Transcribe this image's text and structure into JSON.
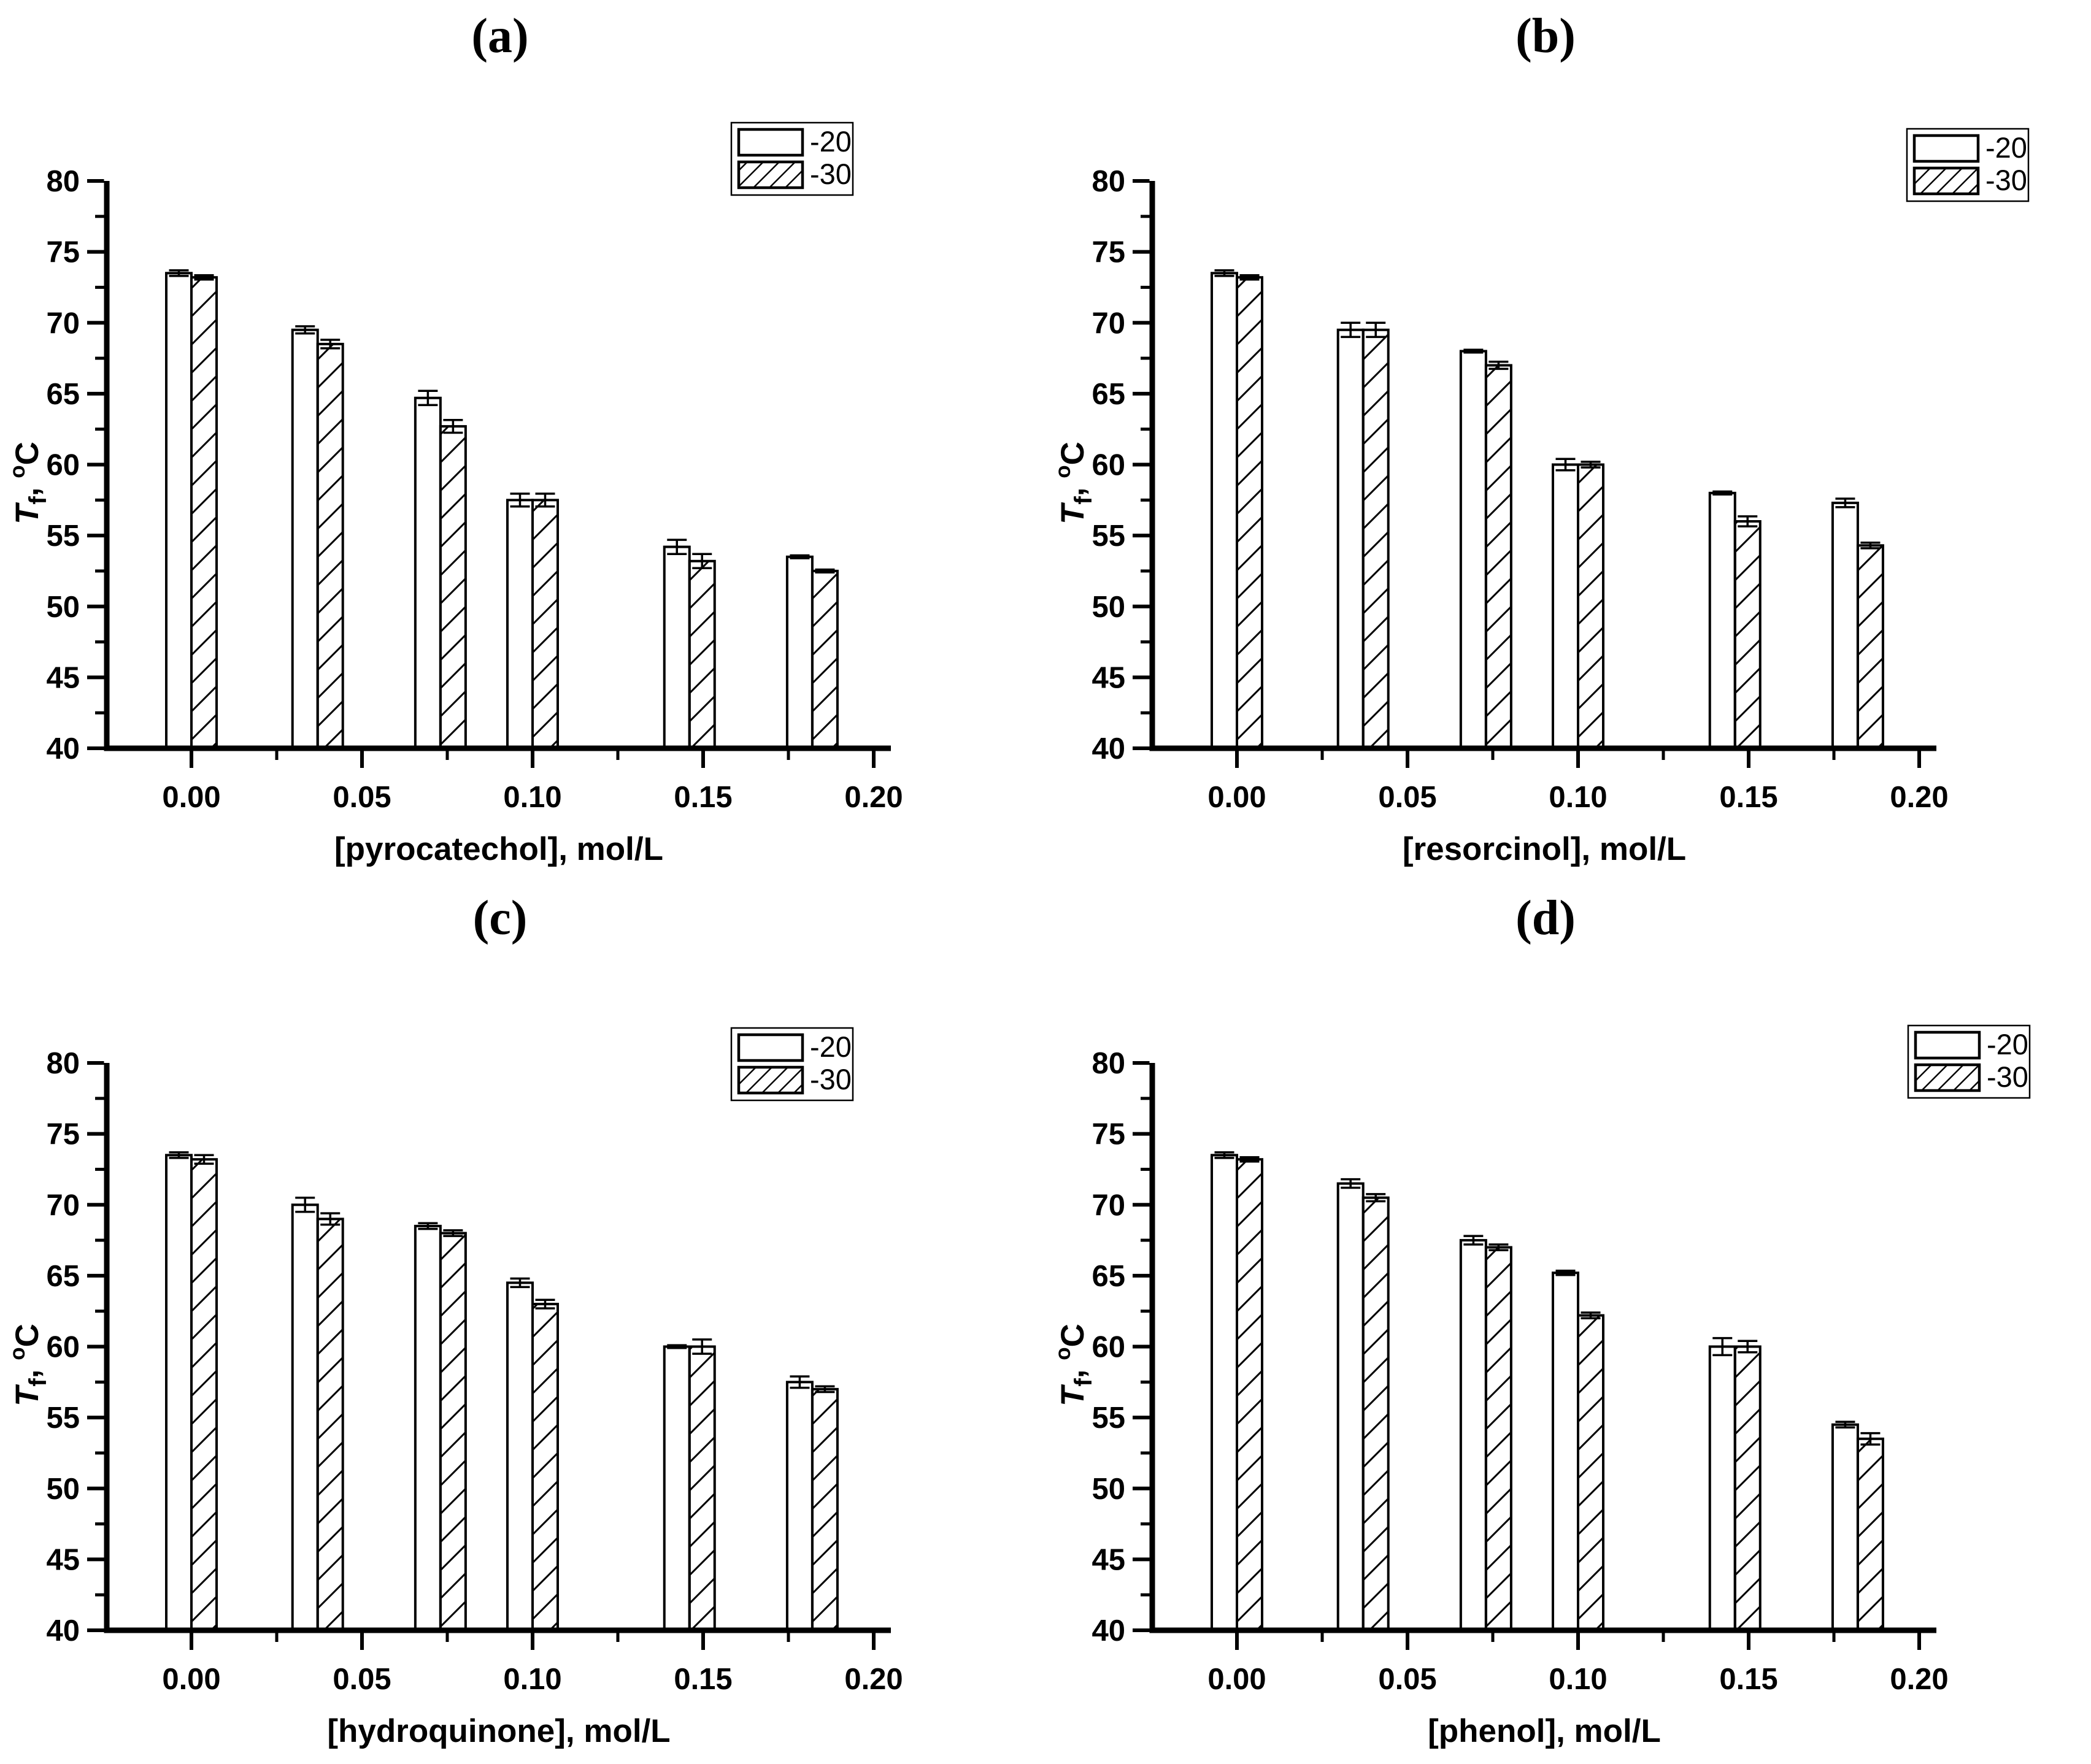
{
  "figure": {
    "background": "#ffffff",
    "ink_color": "#000000",
    "series_labels": [
      "-20",
      "-30"
    ],
    "ylabel_parts": {
      "var": "T",
      "sub": "f",
      "comma": ", ",
      "sup": "o",
      "unit": "C"
    },
    "ylim": [
      40,
      80
    ],
    "ytick_step": 5,
    "ytick_labels": [
      "40",
      "45",
      "50",
      "55",
      "60",
      "65",
      "70",
      "75",
      "80"
    ],
    "xlim": [
      -0.025,
      0.205
    ],
    "xticks": [
      0.0,
      0.05,
      0.1,
      0.15,
      0.2
    ],
    "grid": "off",
    "legend_position": "top-right"
  },
  "chart_data": [
    {
      "type": "bar",
      "panel_label": "(a)",
      "xlabel": "[pyrocatechol], mol/L",
      "xtick_labels": [
        "0.00",
        "0.05",
        "0.10",
        "0.15",
        "0.20"
      ],
      "x": [
        0.0,
        0.037,
        0.073,
        0.1,
        0.146,
        0.182
      ],
      "legend_pos": {
        "x": 1192,
        "y": 200
      },
      "series": [
        {
          "name": "-20",
          "fill": "white",
          "values": [
            73.5,
            69.5,
            64.7,
            57.5,
            54.2,
            53.5
          ],
          "errors": [
            0.2,
            0.25,
            0.5,
            0.45,
            0.5,
            0.1
          ]
        },
        {
          "name": "-30",
          "fill": "hatch",
          "values": [
            73.2,
            68.5,
            62.7,
            57.5,
            53.2,
            52.5
          ],
          "errors": [
            0.15,
            0.3,
            0.45,
            0.45,
            0.5,
            0.1
          ]
        }
      ]
    },
    {
      "type": "bar",
      "panel_label": "(b)",
      "xlabel": "[resorcinol], mol/L",
      "xtick_labels": [
        "0.00",
        "0.05",
        "0.10",
        "0.15",
        "0.20"
      ],
      "x": [
        0.0,
        0.037,
        0.073,
        0.1,
        0.146,
        0.182
      ],
      "legend_pos": {
        "x": 1404,
        "y": 210
      },
      "series": [
        {
          "name": "-20",
          "fill": "white",
          "values": [
            73.5,
            69.5,
            68.0,
            60.0,
            58.0,
            57.3
          ],
          "errors": [
            0.2,
            0.5,
            0.1,
            0.4,
            0.1,
            0.3
          ]
        },
        {
          "name": "-30",
          "fill": "hatch",
          "values": [
            73.2,
            69.5,
            67.0,
            60.0,
            56.0,
            54.3
          ],
          "errors": [
            0.15,
            0.5,
            0.25,
            0.2,
            0.35,
            0.2
          ]
        }
      ]
    },
    {
      "type": "bar",
      "panel_label": "(c)",
      "xlabel": "[hydroquinone], mol/L",
      "xtick_labels": [
        "0.00",
        "0.05",
        "0.10",
        "0.15",
        "0.20"
      ],
      "x": [
        0.0,
        0.037,
        0.073,
        0.1,
        0.146,
        0.182
      ],
      "legend_pos": {
        "x": 1192,
        "y": 238
      },
      "series": [
        {
          "name": "-20",
          "fill": "white",
          "values": [
            73.5,
            70.0,
            68.5,
            64.5,
            60.0,
            57.5
          ],
          "errors": [
            0.2,
            0.5,
            0.2,
            0.3,
            0.1,
            0.4
          ]
        },
        {
          "name": "-30",
          "fill": "hatch",
          "values": [
            73.2,
            69.0,
            68.0,
            63.0,
            60.0,
            57.0
          ],
          "errors": [
            0.3,
            0.4,
            0.2,
            0.3,
            0.5,
            0.2
          ]
        }
      ]
    },
    {
      "type": "bar",
      "panel_label": "(d)",
      "xlabel": "[phenol], mol/L",
      "xtick_labels": [
        "0.00",
        "0.05",
        "0.10",
        "0.15",
        "0.20"
      ],
      "x": [
        0.0,
        0.037,
        0.073,
        0.1,
        0.146,
        0.182
      ],
      "legend_pos": {
        "x": 1406,
        "y": 234
      },
      "series": [
        {
          "name": "-20",
          "fill": "white",
          "values": [
            73.5,
            71.5,
            67.5,
            65.2,
            60.0,
            54.5
          ],
          "errors": [
            0.2,
            0.3,
            0.3,
            0.15,
            0.6,
            0.2
          ]
        },
        {
          "name": "-30",
          "fill": "hatch",
          "values": [
            73.2,
            70.5,
            67.0,
            62.2,
            60.0,
            53.5
          ],
          "errors": [
            0.15,
            0.25,
            0.2,
            0.2,
            0.4,
            0.4
          ]
        }
      ]
    }
  ]
}
